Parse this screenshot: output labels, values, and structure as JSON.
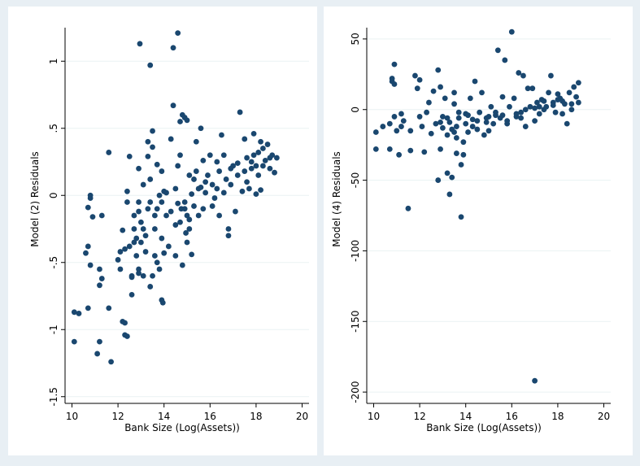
{
  "style": {
    "outer_background": "#e8eff4",
    "panel_background": "#ffffff",
    "marker_color": "#1a476f",
    "grid_color": "#eaf2f3",
    "axis_color": "#000000"
  },
  "chart_data": [
    {
      "type": "scatter",
      "title": "",
      "xlabel": "Bank Size (Log(Assets))",
      "ylabel": "Model (2) Residuals",
      "xlim": [
        9.7,
        20.3
      ],
      "ylim": [
        -1.55,
        1.25
      ],
      "xticks": [
        10,
        12,
        14,
        16,
        18,
        20
      ],
      "xtick_labels": [
        "10",
        "12",
        "14",
        "16",
        "18",
        "20"
      ],
      "yticks": [
        -1.5,
        -1,
        -0.5,
        0,
        0.5,
        1
      ],
      "ytick_labels": [
        "-1.5",
        "-1",
        "-.5",
        "0",
        ".5",
        "1"
      ],
      "grid": true,
      "points": [
        [
          10.1,
          -0.87
        ],
        [
          10.1,
          -1.09
        ],
        [
          10.3,
          -0.88
        ],
        [
          10.7,
          -0.84
        ],
        [
          10.6,
          -0.43
        ],
        [
          10.7,
          -0.38
        ],
        [
          10.8,
          -0.52
        ],
        [
          10.7,
          -0.09
        ],
        [
          10.8,
          -0.02
        ],
        [
          10.8,
          0.0
        ],
        [
          10.9,
          -0.16
        ],
        [
          11.1,
          -1.18
        ],
        [
          11.2,
          -1.09
        ],
        [
          11.2,
          -0.55
        ],
        [
          11.3,
          -0.62
        ],
        [
          11.2,
          -0.67
        ],
        [
          11.3,
          -0.15
        ],
        [
          11.6,
          0.32
        ],
        [
          11.6,
          -0.84
        ],
        [
          11.7,
          -1.24
        ],
        [
          12.0,
          -0.48
        ],
        [
          12.1,
          -0.42
        ],
        [
          12.2,
          -0.26
        ],
        [
          12.2,
          -0.94
        ],
        [
          12.3,
          -0.95
        ],
        [
          12.3,
          -1.04
        ],
        [
          12.4,
          -1.05
        ],
        [
          12.4,
          0.03
        ],
        [
          12.5,
          0.29
        ],
        [
          12.4,
          -0.05
        ],
        [
          12.5,
          -0.38
        ],
        [
          12.6,
          -0.74
        ],
        [
          12.6,
          -0.61
        ],
        [
          12.7,
          -0.15
        ],
        [
          12.7,
          -0.25
        ],
        [
          12.8,
          -0.45
        ],
        [
          12.8,
          -0.32
        ],
        [
          12.9,
          -0.58
        ],
        [
          12.9,
          -0.12
        ],
        [
          12.95,
          1.13
        ],
        [
          12.9,
          0.2
        ],
        [
          12.9,
          -0.55
        ],
        [
          13.0,
          -0.35
        ],
        [
          13.0,
          -0.2
        ],
        [
          13.1,
          0.08
        ],
        [
          13.1,
          -0.6
        ],
        [
          13.2,
          -0.42
        ],
        [
          13.2,
          -0.3
        ],
        [
          13.3,
          0.29
        ],
        [
          13.3,
          0.4
        ],
        [
          13.4,
          0.97
        ],
        [
          13.4,
          0.12
        ],
        [
          13.4,
          -0.05
        ],
        [
          13.4,
          -0.68
        ],
        [
          13.5,
          0.48
        ],
        [
          13.5,
          0.36
        ],
        [
          13.5,
          -0.6
        ],
        [
          13.6,
          -0.25
        ],
        [
          13.6,
          -0.45
        ],
        [
          13.7,
          0.23
        ],
        [
          13.7,
          -0.1
        ],
        [
          13.7,
          -0.5
        ],
        [
          13.8,
          0.0
        ],
        [
          13.8,
          -0.55
        ],
        [
          13.9,
          0.18
        ],
        [
          13.9,
          -0.32
        ],
        [
          13.9,
          -0.78
        ],
        [
          13.95,
          -0.8
        ],
        [
          14.0,
          -0.43
        ],
        [
          14.0,
          0.03
        ],
        [
          14.1,
          -0.15
        ],
        [
          14.2,
          -0.38
        ],
        [
          14.3,
          0.42
        ],
        [
          14.4,
          1.1
        ],
        [
          14.4,
          0.67
        ],
        [
          14.5,
          -0.22
        ],
        [
          14.5,
          -0.45
        ],
        [
          14.6,
          1.21
        ],
        [
          14.6,
          -0.06
        ],
        [
          14.6,
          0.22
        ],
        [
          14.7,
          0.55
        ],
        [
          14.7,
          0.3
        ],
        [
          14.75,
          -0.1
        ],
        [
          14.8,
          0.6
        ],
        [
          14.8,
          -0.52
        ],
        [
          14.9,
          0.58
        ],
        [
          14.9,
          -0.05
        ],
        [
          14.95,
          -0.28
        ],
        [
          15.0,
          0.56
        ],
        [
          15.0,
          -0.35
        ],
        [
          15.0,
          -0.15
        ],
        [
          15.1,
          0.15
        ],
        [
          15.1,
          -0.18
        ],
        [
          15.2,
          0.01
        ],
        [
          15.2,
          -0.44
        ],
        [
          15.3,
          -0.08
        ],
        [
          15.4,
          0.4
        ],
        [
          15.4,
          0.18
        ],
        [
          15.5,
          -0.15
        ],
        [
          15.6,
          0.5
        ],
        [
          15.6,
          0.06
        ],
        [
          15.7,
          0.26
        ],
        [
          15.7,
          -0.1
        ],
        [
          15.8,
          0.02
        ],
        [
          15.9,
          0.15
        ],
        [
          16.0,
          0.3
        ],
        [
          16.1,
          0.08
        ],
        [
          16.2,
          -0.02
        ],
        [
          16.3,
          0.25
        ],
        [
          16.3,
          0.05
        ],
        [
          16.4,
          -0.15
        ],
        [
          16.5,
          0.45
        ],
        [
          16.6,
          0.3
        ],
        [
          16.7,
          0.12
        ],
        [
          16.8,
          -0.25
        ],
        [
          16.8,
          -0.3
        ],
        [
          16.9,
          0.08
        ],
        [
          17.0,
          0.22
        ],
        [
          17.1,
          -0.12
        ],
        [
          17.2,
          0.15
        ],
        [
          17.3,
          0.62
        ],
        [
          17.4,
          0.03
        ],
        [
          17.5,
          0.42
        ],
        [
          17.6,
          0.28
        ],
        [
          17.7,
          0.05
        ],
        [
          17.8,
          0.2
        ],
        [
          17.9,
          0.46
        ],
        [
          17.9,
          0.3
        ],
        [
          18.0,
          0.01
        ],
        [
          18.0,
          0.22
        ],
        [
          18.1,
          0.32
        ],
        [
          18.1,
          0.15
        ],
        [
          18.2,
          0.4
        ],
        [
          18.3,
          0.35
        ],
        [
          18.3,
          0.22
        ],
        [
          18.4,
          0.26
        ],
        [
          18.5,
          0.38
        ],
        [
          18.6,
          0.28
        ],
        [
          18.6,
          0.2
        ],
        [
          18.7,
          0.3
        ],
        [
          18.8,
          0.17
        ],
        [
          18.9,
          0.28
        ],
        [
          18.2,
          0.04
        ],
        [
          17.6,
          0.1
        ],
        [
          17.8,
          0.25
        ],
        [
          17.5,
          0.18
        ],
        [
          17.2,
          0.24
        ],
        [
          16.9,
          0.2
        ],
        [
          16.6,
          0.02
        ],
        [
          16.4,
          0.18
        ],
        [
          16.1,
          -0.08
        ],
        [
          15.8,
          0.1
        ],
        [
          15.5,
          0.05
        ],
        [
          15.3,
          0.12
        ],
        [
          15.1,
          -0.25
        ],
        [
          14.9,
          -0.1
        ],
        [
          14.7,
          -0.2
        ],
        [
          14.5,
          0.05
        ],
        [
          14.3,
          -0.12
        ],
        [
          14.1,
          0.02
        ],
        [
          13.9,
          -0.05
        ],
        [
          13.6,
          -0.15
        ],
        [
          13.3,
          -0.1
        ],
        [
          13.1,
          -0.25
        ],
        [
          12.9,
          -0.05
        ],
        [
          12.7,
          -0.35
        ],
        [
          12.6,
          -0.6
        ],
        [
          12.3,
          -0.4
        ],
        [
          12.1,
          -0.55
        ]
      ]
    },
    {
      "type": "scatter",
      "title": "",
      "xlabel": "Bank Size (Log(Assets))",
      "ylabel": "Model (4) Residuals",
      "xlim": [
        9.7,
        20.3
      ],
      "ylim": [
        -208,
        58
      ],
      "xticks": [
        10,
        12,
        14,
        16,
        18,
        20
      ],
      "xtick_labels": [
        "10",
        "12",
        "14",
        "16",
        "18",
        "20"
      ],
      "yticks": [
        -200,
        -150,
        -100,
        -50,
        0,
        50
      ],
      "ytick_labels": [
        "-200",
        "-150",
        "-100",
        "-50",
        "0",
        "50"
      ],
      "grid": true,
      "points": [
        [
          10.1,
          -28
        ],
        [
          10.1,
          -16
        ],
        [
          10.4,
          -12
        ],
        [
          10.7,
          -28
        ],
        [
          10.7,
          -10
        ],
        [
          10.8,
          20
        ],
        [
          10.8,
          22
        ],
        [
          10.9,
          18
        ],
        [
          10.9,
          32
        ],
        [
          10.9,
          -5
        ],
        [
          11.0,
          -15
        ],
        [
          11.1,
          -32
        ],
        [
          11.2,
          -12
        ],
        [
          11.2,
          -3
        ],
        [
          11.3,
          -8
        ],
        [
          11.5,
          -70
        ],
        [
          11.6,
          -29
        ],
        [
          11.6,
          -15
        ],
        [
          11.8,
          24
        ],
        [
          11.9,
          15
        ],
        [
          12.0,
          21
        ],
        [
          12.0,
          -5
        ],
        [
          12.1,
          -12
        ],
        [
          12.2,
          -30
        ],
        [
          12.3,
          -2
        ],
        [
          12.4,
          5
        ],
        [
          12.5,
          -17
        ],
        [
          12.6,
          13
        ],
        [
          12.7,
          -10
        ],
        [
          12.8,
          28
        ],
        [
          12.8,
          -50
        ],
        [
          12.9,
          -28
        ],
        [
          12.9,
          16
        ],
        [
          13.0,
          -13
        ],
        [
          13.0,
          -5
        ],
        [
          13.1,
          8
        ],
        [
          13.2,
          -45
        ],
        [
          13.2,
          -18
        ],
        [
          13.3,
          -60
        ],
        [
          13.3,
          -9
        ],
        [
          13.4,
          -48
        ],
        [
          13.4,
          -14
        ],
        [
          13.5,
          12
        ],
        [
          13.5,
          4
        ],
        [
          13.6,
          -20
        ],
        [
          13.6,
          -31
        ],
        [
          13.7,
          -6
        ],
        [
          13.7,
          -2
        ],
        [
          13.8,
          -76
        ],
        [
          13.8,
          -39
        ],
        [
          13.9,
          -23
        ],
        [
          13.9,
          -32
        ],
        [
          14.0,
          -10
        ],
        [
          14.0,
          -3
        ],
        [
          14.1,
          -16
        ],
        [
          14.2,
          8
        ],
        [
          14.3,
          -12
        ],
        [
          14.4,
          20
        ],
        [
          14.5,
          -8
        ],
        [
          14.6,
          -2
        ],
        [
          14.7,
          12
        ],
        [
          14.8,
          -18
        ],
        [
          14.9,
          -6
        ],
        [
          15.0,
          -15
        ],
        [
          15.1,
          2
        ],
        [
          15.2,
          -10
        ],
        [
          15.3,
          -4
        ],
        [
          15.4,
          42
        ],
        [
          15.5,
          -6
        ],
        [
          15.6,
          9
        ],
        [
          15.7,
          35
        ],
        [
          15.8,
          -10
        ],
        [
          15.9,
          2
        ],
        [
          16.0,
          55
        ],
        [
          16.1,
          8
        ],
        [
          16.2,
          -5
        ],
        [
          16.3,
          26
        ],
        [
          16.4,
          -2
        ],
        [
          16.5,
          24
        ],
        [
          16.6,
          -12
        ],
        [
          16.7,
          15
        ],
        [
          16.8,
          2
        ],
        [
          16.9,
          15
        ],
        [
          17.0,
          -192
        ],
        [
          17.0,
          -8
        ],
        [
          17.1,
          5
        ],
        [
          17.2,
          -3
        ],
        [
          17.3,
          7
        ],
        [
          17.4,
          0
        ],
        [
          17.5,
          2
        ],
        [
          17.6,
          12
        ],
        [
          17.7,
          24
        ],
        [
          17.8,
          5
        ],
        [
          17.9,
          -2
        ],
        [
          18.0,
          11
        ],
        [
          18.1,
          8
        ],
        [
          18.2,
          -3
        ],
        [
          18.3,
          4
        ],
        [
          18.4,
          -10
        ],
        [
          18.5,
          12
        ],
        [
          18.6,
          0
        ],
        [
          18.7,
          16
        ],
        [
          18.8,
          9
        ],
        [
          18.9,
          19
        ],
        [
          18.9,
          5
        ],
        [
          13.2,
          -6
        ],
        [
          13.6,
          -12
        ],
        [
          14.1,
          -4
        ],
        [
          14.5,
          -14
        ],
        [
          14.9,
          -9
        ],
        [
          15.3,
          -2
        ],
        [
          15.8,
          -8
        ],
        [
          16.2,
          -3
        ],
        [
          16.6,
          0
        ],
        [
          17.0,
          1
        ],
        [
          17.4,
          6
        ],
        [
          17.8,
          3
        ],
        [
          18.2,
          6
        ],
        [
          18.6,
          4
        ],
        [
          12.9,
          -9
        ],
        [
          13.5,
          -16
        ],
        [
          14.3,
          -7
        ],
        [
          15.0,
          -5
        ],
        [
          15.6,
          -4
        ],
        [
          16.4,
          -6
        ],
        [
          17.2,
          2
        ],
        [
          18.0,
          7
        ]
      ]
    }
  ]
}
